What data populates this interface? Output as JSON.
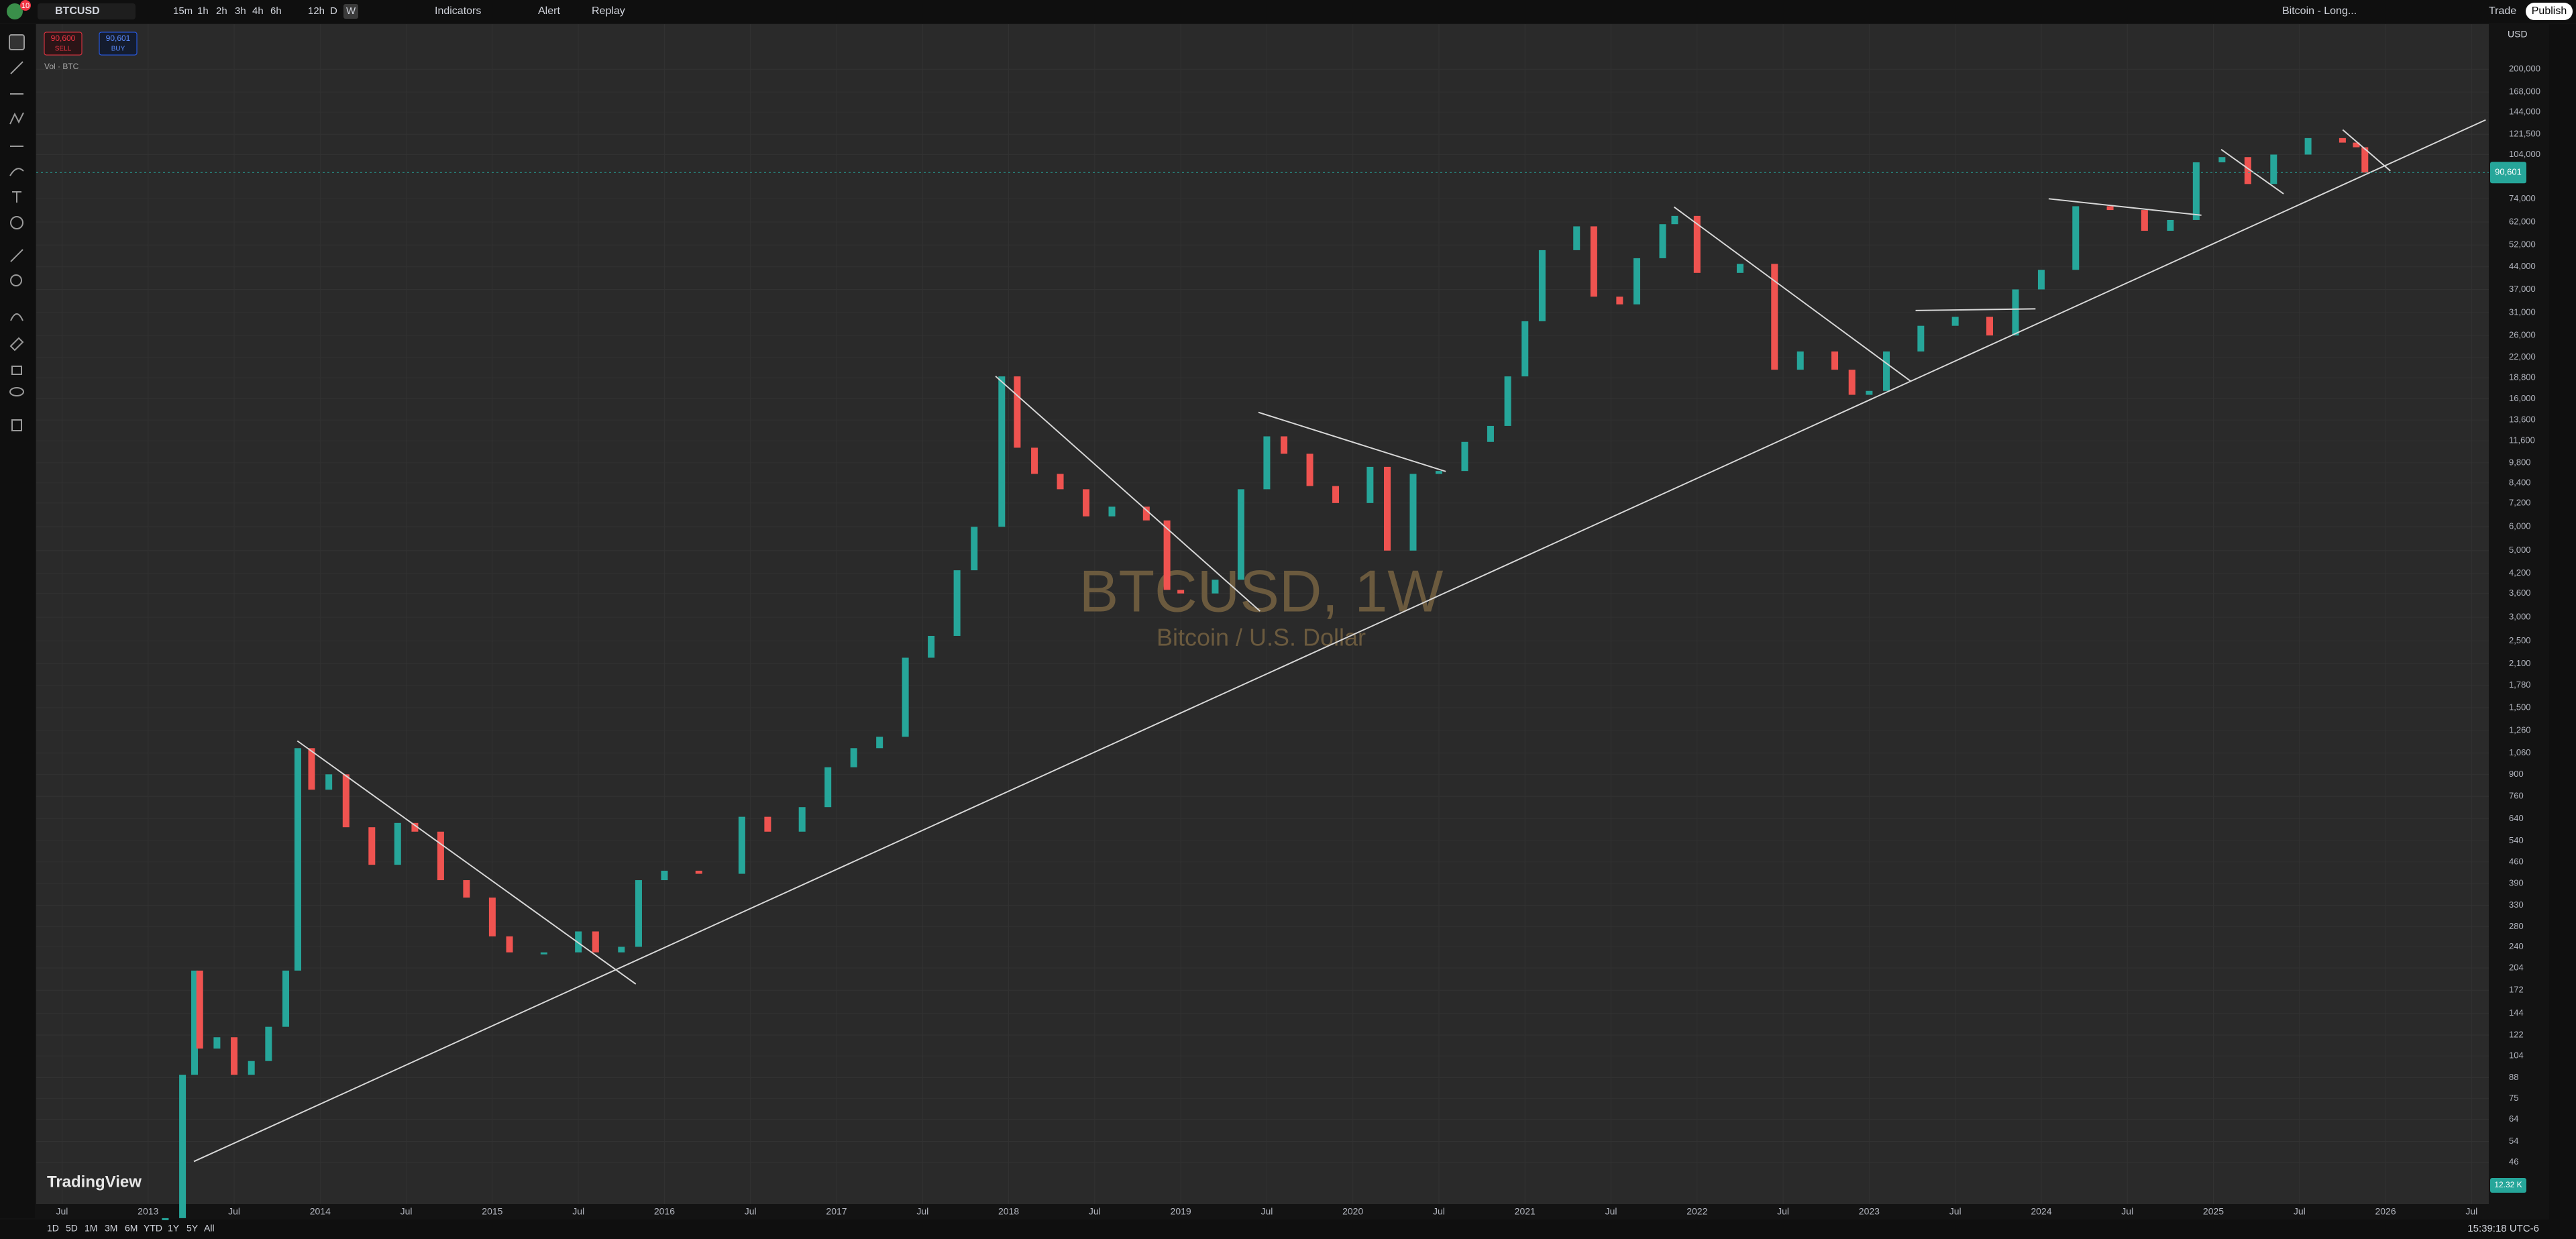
{
  "toolbar": {
    "symbol": "BTCUSD",
    "badge": "10",
    "intervals": [
      "15m",
      "1h",
      "2h",
      "3h",
      "4h",
      "6h",
      "12h",
      "D",
      "W"
    ],
    "indicators": "Indicators",
    "alert": "Alert",
    "replay": "Replay",
    "layout": "Bitcoin - Long...",
    "trade": "Trade",
    "publish": "Publish"
  },
  "order": {
    "sell_price": "90,600",
    "sell": "SELL",
    "buy_price": "90,601",
    "buy": "BUY"
  },
  "legend": {
    "volume": "Vol · BTC"
  },
  "watermark": {
    "title": "BTCUSD, 1W",
    "subtitle": "Bitcoin / U.S. Dollar"
  },
  "logo": "TradingView",
  "range_buttons": [
    "1D",
    "5D",
    "1M",
    "3M",
    "6M",
    "YTD",
    "1Y",
    "5Y",
    "All"
  ],
  "clock": "15:39:18 UTC-6",
  "chart_data": {
    "type": "candlestick",
    "currency": "USD",
    "yscale": "log",
    "up_color": "#26a69a",
    "down_color": "#ef5350",
    "x": [
      2013.1,
      2013.2,
      2013.27,
      2013.3,
      2013.4,
      2013.5,
      2013.6,
      2013.7,
      2013.8,
      2013.87,
      2013.95,
      2014.05,
      2014.15,
      2014.3,
      2014.45,
      2014.55,
      2014.7,
      2014.85,
      2015.0,
      2015.1,
      2015.3,
      2015.5,
      2015.6,
      2015.75,
      2015.85,
      2016.0,
      2016.2,
      2016.45,
      2016.6,
      2016.8,
      2016.95,
      2017.1,
      2017.25,
      2017.4,
      2017.55,
      2017.7,
      2017.8,
      2017.96,
      2018.05,
      2018.15,
      2018.3,
      2018.45,
      2018.6,
      2018.8,
      2018.92,
      2019.0,
      2019.2,
      2019.35,
      2019.5,
      2019.6,
      2019.75,
      2019.9,
      2020.1,
      2020.2,
      2020.35,
      2020.5,
      2020.65,
      2020.8,
      2020.9,
      2021.0,
      2021.1,
      2021.3,
      2021.4,
      2021.55,
      2021.65,
      2021.8,
      2021.87,
      2022.0,
      2022.25,
      2022.45,
      2022.6,
      2022.8,
      2022.9,
      2023.0,
      2023.1,
      2023.3,
      2023.5,
      2023.7,
      2023.85,
      2024.0,
      2024.2,
      2024.4,
      2024.6,
      2024.75,
      2024.9,
      2025.05,
      2025.2,
      2025.35,
      2025.55,
      2025.75,
      2025.83,
      2025.88
    ],
    "values": [
      30,
      90,
      200,
      110,
      120,
      90,
      100,
      130,
      200,
      1100,
      800,
      900,
      600,
      450,
      620,
      580,
      400,
      350,
      260,
      230,
      230,
      270,
      230,
      240,
      400,
      430,
      420,
      650,
      580,
      700,
      950,
      1100,
      1200,
      2200,
      2600,
      4300,
      6000,
      19000,
      11000,
      9000,
      8000,
      6500,
      7000,
      6300,
      3700,
      3600,
      4000,
      8000,
      12000,
      10500,
      8200,
      7200,
      9500,
      5000,
      9000,
      9200,
      11500,
      13000,
      19000,
      29000,
      50000,
      60000,
      35000,
      33000,
      47000,
      61000,
      65000,
      42000,
      45000,
      20000,
      23000,
      20000,
      16500,
      17000,
      23000,
      28000,
      30000,
      26000,
      37000,
      43000,
      70000,
      68000,
      58000,
      63000,
      98000,
      102000,
      83000,
      104000,
      118000,
      114000,
      110000,
      90600
    ],
    "xlim": [
      2012.35,
      2026.6
    ],
    "ylim": [
      33.4,
      282600
    ],
    "xticks": [
      {
        "value": 2012.5,
        "label": "Jul"
      },
      2013,
      {
        "value": 2013.5,
        "label": "Jul"
      },
      2014,
      {
        "value": 2014.5,
        "label": "Jul"
      },
      2015,
      {
        "value": 2015.5,
        "label": "Jul"
      },
      2016,
      {
        "value": 2016.5,
        "label": "Jul"
      },
      2017,
      {
        "value": 2017.5,
        "label": "Jul"
      },
      2018,
      {
        "value": 2018.5,
        "label": "Jul"
      },
      2019,
      {
        "value": 2019.5,
        "label": "Jul"
      },
      2020,
      {
        "value": 2020.5,
        "label": "Jul"
      },
      2021,
      {
        "value": 2021.5,
        "label": "Jul"
      },
      2022,
      {
        "value": 2022.5,
        "label": "Jul"
      },
      2023,
      {
        "value": 2023.5,
        "label": "Jul"
      },
      2024,
      {
        "value": 2024.5,
        "label": "Jul"
      },
      2025,
      {
        "value": 2025.5,
        "label": "Jul"
      },
      2026,
      {
        "value": 2026.5,
        "label": "Jul"
      }
    ],
    "yticks": [
      {
        "value": 200000,
        "label": "200,000"
      },
      {
        "value": 168000,
        "label": "168,000"
      },
      {
        "value": 144000,
        "label": "144,000"
      },
      {
        "value": 121500,
        "label": "121,500"
      },
      {
        "value": 104000,
        "label": "104,000"
      },
      {
        "value": 74000,
        "label": "74,000"
      },
      {
        "value": 62000,
        "label": "62,000"
      },
      {
        "value": 52000,
        "label": "52,000"
      },
      {
        "value": 44000,
        "label": "44,000"
      },
      {
        "value": 37000,
        "label": "37,000"
      },
      {
        "value": 31000,
        "label": "31,000"
      },
      {
        "value": 26000,
        "label": "26,000"
      },
      {
        "value": 22000,
        "label": "22,000"
      },
      {
        "value": 18800,
        "label": "18,800"
      },
      {
        "value": 16000,
        "label": "16,000"
      },
      {
        "value": 13600,
        "label": "13,600"
      },
      {
        "value": 11600,
        "label": "11,600"
      },
      {
        "value": 9800,
        "label": "9,800"
      },
      {
        "value": 8400,
        "label": "8,400"
      },
      {
        "value": 7200,
        "label": "7,200"
      },
      {
        "value": 6000,
        "label": "6,000"
      },
      {
        "value": 5000,
        "label": "5,000"
      },
      {
        "value": 4200,
        "label": "4,200"
      },
      {
        "value": 3600,
        "label": "3,600"
      },
      {
        "value": 3000,
        "label": "3,000"
      },
      {
        "value": 2500,
        "label": "2,500"
      },
      {
        "value": 2100,
        "label": "2,100"
      },
      {
        "value": 1780,
        "label": "1,780"
      },
      {
        "value": 1500,
        "label": "1,500"
      },
      {
        "value": 1260,
        "label": "1,260"
      },
      {
        "value": 1060,
        "label": "1,060"
      },
      900,
      760,
      640,
      540,
      460,
      390,
      330,
      280,
      240,
      204,
      172,
      144,
      122,
      104,
      88,
      75,
      64,
      54,
      46
    ],
    "last_price": {
      "value": 90601,
      "label": "90,601"
    },
    "volume_label": "12.32 K"
  }
}
